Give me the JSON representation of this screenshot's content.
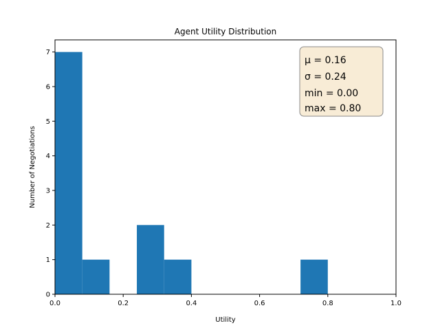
{
  "chart_data": {
    "type": "bar",
    "title": "Agent Utility Distribution",
    "xlabel": "Utility",
    "ylabel": "Number of Negotiations",
    "xlim": [
      0,
      1.0
    ],
    "ylim": [
      0,
      7.35
    ],
    "xticks": [
      "0.0",
      "0.2",
      "0.4",
      "0.6",
      "0.8",
      "1.0"
    ],
    "xtick_values": [
      0,
      0.2,
      0.4,
      0.6,
      0.8,
      1.0
    ],
    "yticks": [
      "0",
      "1",
      "2",
      "3",
      "4",
      "5",
      "6",
      "7"
    ],
    "ytick_values": [
      0,
      1,
      2,
      3,
      4,
      5,
      6,
      7
    ],
    "grid": false,
    "bin_edges": [
      0.0,
      0.08,
      0.16,
      0.24,
      0.32,
      0.4,
      0.48,
      0.56,
      0.64,
      0.72,
      0.8
    ],
    "values": [
      7,
      1,
      0,
      2,
      1,
      0,
      0,
      0,
      0,
      1
    ],
    "bar_color": "#1f77b4",
    "annotation": {
      "lines": [
        "μ = 0.16",
        "σ = 0.24",
        "min = 0.00",
        "max = 0.80"
      ],
      "placement": "top-right",
      "facecolor": "#f8ecd6",
      "edgecolor": "#8a8a8a"
    }
  }
}
